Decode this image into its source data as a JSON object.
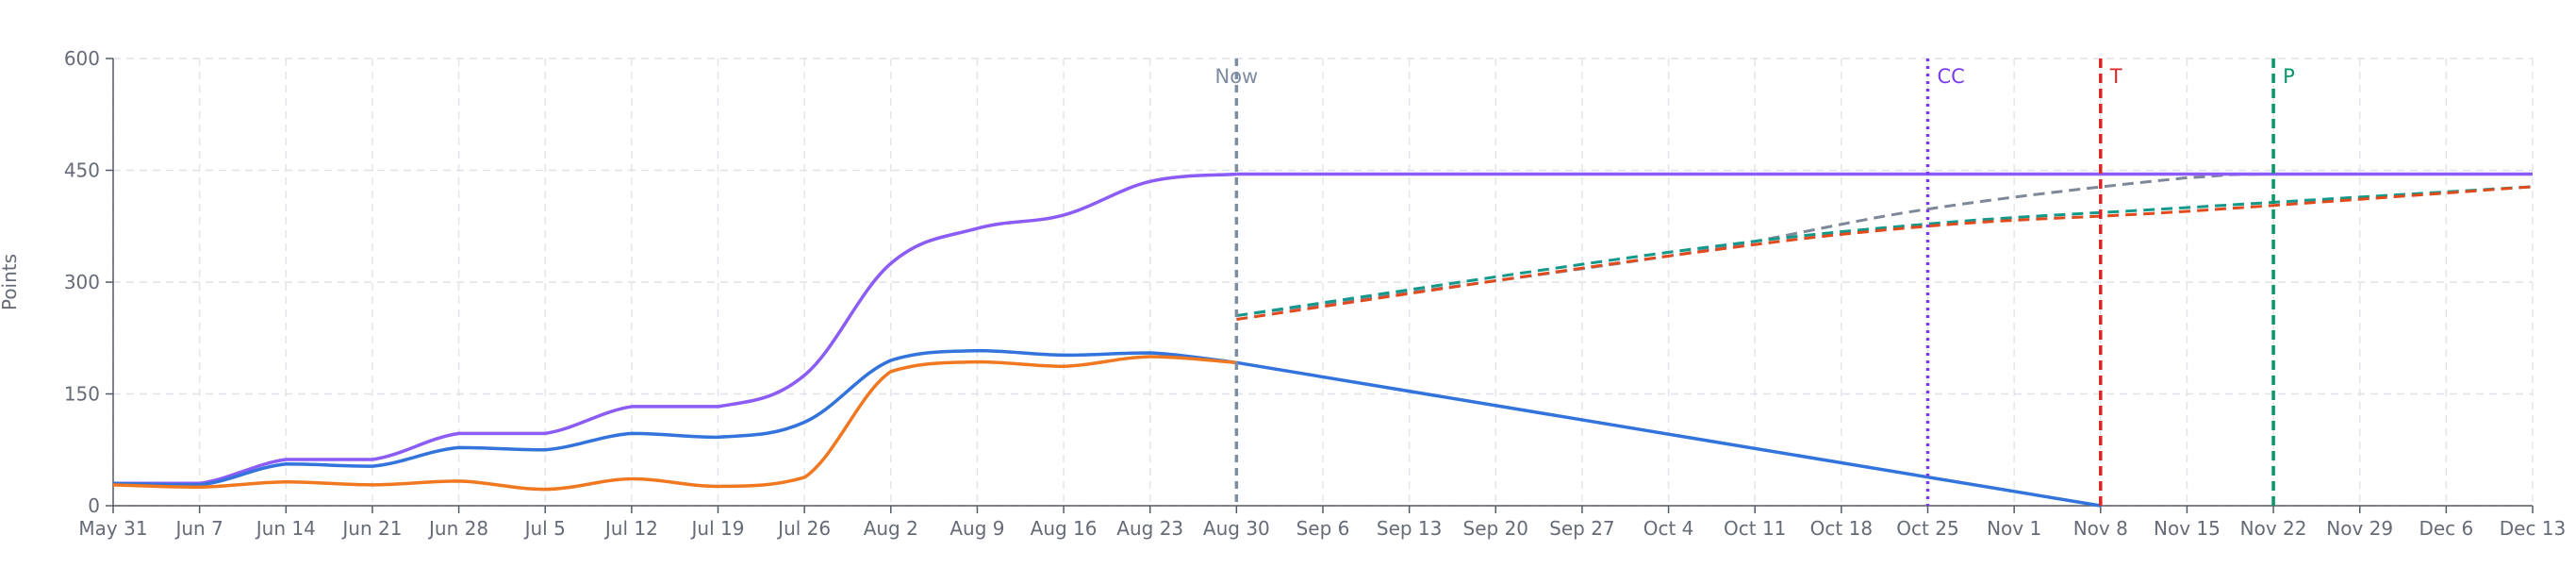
{
  "chart_data": {
    "type": "line",
    "ylabel": "Points",
    "ylim": [
      0,
      600
    ],
    "y_ticks": [
      0,
      150,
      300,
      450,
      600
    ],
    "x_ticks": [
      "May 31",
      "Jun 7",
      "Jun 14",
      "Jun 21",
      "Jun 28",
      "Jul 5",
      "Jul 12",
      "Jul 19",
      "Jul 26",
      "Aug 2",
      "Aug 9",
      "Aug 16",
      "Aug 23",
      "Aug 30",
      "Sep 6",
      "Sep 13",
      "Sep 20",
      "Sep 27",
      "Oct 4",
      "Oct 11",
      "Oct 18",
      "Oct 25",
      "Nov 1",
      "Nov 8",
      "Nov 15",
      "Nov 22",
      "Nov 29",
      "Dec 6",
      "Dec 13"
    ],
    "grid": true,
    "colors": {
      "scope": "#8b5cf6",
      "remaining": "#3273dc",
      "completed": "#f07820",
      "projection_gray": "#7f8898",
      "projection_teal": "#14988a",
      "projection_red": "#e04a1c",
      "marker_now": "#7f8da0",
      "marker_cc": "#7c3aed",
      "marker_t": "#dc2626",
      "marker_p": "#059669"
    },
    "series": [
      {
        "key": "scope",
        "values": [
          [
            0,
            30
          ],
          [
            1,
            30
          ],
          [
            2,
            62
          ],
          [
            3,
            62
          ],
          [
            4,
            97
          ],
          [
            5,
            97
          ],
          [
            6,
            133
          ],
          [
            7,
            133
          ],
          [
            8,
            175
          ],
          [
            9,
            325
          ],
          [
            10,
            372
          ],
          [
            11,
            390
          ],
          [
            12,
            435
          ],
          [
            13,
            445
          ],
          [
            28,
            445
          ]
        ]
      },
      {
        "key": "remaining",
        "values": [
          [
            0,
            30
          ],
          [
            1,
            28
          ],
          [
            2,
            56
          ],
          [
            3,
            53
          ],
          [
            4,
            78
          ],
          [
            5,
            75
          ],
          [
            6,
            97
          ],
          [
            7,
            92
          ],
          [
            8,
            112
          ],
          [
            9,
            195
          ],
          [
            10,
            208
          ],
          [
            11,
            202
          ],
          [
            12,
            205
          ],
          [
            13,
            192
          ],
          [
            23,
            0
          ]
        ]
      },
      {
        "key": "completed",
        "values": [
          [
            0,
            28
          ],
          [
            1,
            25
          ],
          [
            2,
            32
          ],
          [
            3,
            28
          ],
          [
            4,
            33
          ],
          [
            5,
            22
          ],
          [
            6,
            36
          ],
          [
            7,
            26
          ],
          [
            8,
            38
          ],
          [
            9,
            180
          ],
          [
            10,
            193
          ],
          [
            11,
            187
          ],
          [
            12,
            200
          ],
          [
            13,
            192
          ]
        ]
      }
    ],
    "projections": [
      {
        "key": "projection_gray",
        "values": [
          [
            13,
            255
          ],
          [
            18,
            335
          ],
          [
            21,
            398
          ],
          [
            24,
            440
          ],
          [
            25,
            445
          ],
          [
            28,
            445
          ]
        ]
      },
      {
        "key": "projection_teal",
        "values": [
          [
            13,
            255
          ],
          [
            18,
            340
          ],
          [
            21,
            378
          ],
          [
            24,
            400
          ],
          [
            28,
            428
          ]
        ]
      },
      {
        "key": "projection_red",
        "values": [
          [
            13,
            250
          ],
          [
            18,
            335
          ],
          [
            21,
            375
          ],
          [
            24,
            395
          ],
          [
            28,
            428
          ]
        ]
      }
    ],
    "markers": [
      {
        "key": "marker_now",
        "x": 13,
        "label": "Now",
        "label_side": "center",
        "dash": "8,6"
      },
      {
        "key": "marker_cc",
        "x": 21,
        "label": "CC",
        "label_side": "right",
        "dash": "3,5"
      },
      {
        "key": "marker_t",
        "x": 23,
        "label": "T",
        "label_side": "right",
        "dash": "10,6"
      },
      {
        "key": "marker_p",
        "x": 25,
        "label": "P",
        "label_side": "right",
        "dash": "10,6"
      }
    ]
  }
}
